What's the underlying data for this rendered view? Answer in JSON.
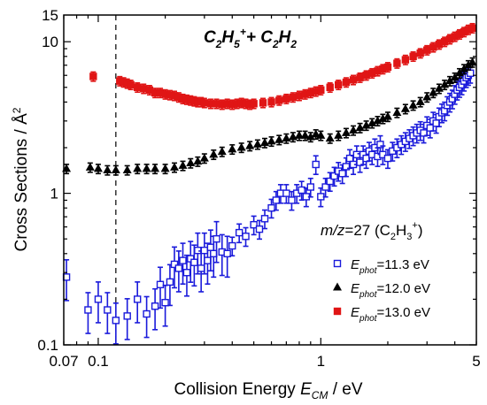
{
  "chart_data": {
    "type": "scatter",
    "title_parts": {
      "a": "C",
      "a_sub": "2",
      "b": "H",
      "b_sub": "5",
      "b_sup": "+",
      "plus": "+ C",
      "c_sub": "2",
      "d": "H",
      "d_sub": "2"
    },
    "xlabel": {
      "main": "Collision Energy ",
      "var": "E",
      "var_sub": "CM",
      "unit": " / eV"
    },
    "ylabel": "Cross Sections / Å",
    "ylabel_sup": "2",
    "xscale": "log",
    "yscale": "log",
    "xlim": [
      0.07,
      5
    ],
    "ylim": [
      0.1,
      15
    ],
    "x_ticks": [
      {
        "v": 0.07,
        "label": "0.07"
      },
      {
        "v": 0.1,
        "label": "0.1"
      },
      {
        "v": 1,
        "label": "1"
      },
      {
        "v": 5,
        "label": "5"
      }
    ],
    "y_ticks": [
      {
        "v": 0.1,
        "label": "0.1"
      },
      {
        "v": 1,
        "label": "1"
      },
      {
        "v": 10,
        "label": "10"
      },
      {
        "v": 15,
        "label": "15"
      }
    ],
    "dashed_line_x": 0.12,
    "legend_header": {
      "mz_italic": "m/z",
      "mz_rest": "=27 (C",
      "s1": "2",
      "mid": "H",
      "s2": "3",
      "sup": "+",
      "close": ")"
    },
    "legend_placement": "lower-right",
    "series": [
      {
        "name": "E_phot=11.3 eV",
        "label_var": "E",
        "label_sub": "phot",
        "label_rest": "=11.3 eV",
        "marker": "open-square",
        "color": "#1a1adb",
        "points": [
          [
            0.072,
            0.28
          ],
          [
            0.09,
            0.17
          ],
          [
            0.1,
            0.2
          ],
          [
            0.11,
            0.17
          ],
          [
            0.12,
            0.145
          ],
          [
            0.135,
            0.155
          ],
          [
            0.15,
            0.2
          ],
          [
            0.165,
            0.16
          ],
          [
            0.18,
            0.18
          ],
          [
            0.19,
            0.25
          ],
          [
            0.2,
            0.19
          ],
          [
            0.21,
            0.26
          ],
          [
            0.22,
            0.34
          ],
          [
            0.23,
            0.32
          ],
          [
            0.24,
            0.36
          ],
          [
            0.25,
            0.3
          ],
          [
            0.26,
            0.37
          ],
          [
            0.27,
            0.35
          ],
          [
            0.28,
            0.42
          ],
          [
            0.29,
            0.32
          ],
          [
            0.3,
            0.42
          ],
          [
            0.31,
            0.36
          ],
          [
            0.32,
            0.44
          ],
          [
            0.33,
            0.4
          ],
          [
            0.34,
            0.5
          ],
          [
            0.36,
            0.41
          ],
          [
            0.38,
            0.4
          ],
          [
            0.4,
            0.45
          ],
          [
            0.43,
            0.55
          ],
          [
            0.46,
            0.52
          ],
          [
            0.5,
            0.62
          ],
          [
            0.53,
            0.58
          ],
          [
            0.56,
            0.68
          ],
          [
            0.6,
            0.8
          ],
          [
            0.63,
            0.9
          ],
          [
            0.66,
            1.0
          ],
          [
            0.7,
            1.0
          ],
          [
            0.74,
            0.9
          ],
          [
            0.78,
            1.0
          ],
          [
            0.82,
            1.05
          ],
          [
            0.86,
            0.95
          ],
          [
            0.9,
            1.1
          ],
          [
            0.95,
            1.55
          ],
          [
            1.0,
            0.95
          ],
          [
            1.05,
            1.1
          ],
          [
            1.1,
            1.2
          ],
          [
            1.15,
            1.3
          ],
          [
            1.2,
            1.4
          ],
          [
            1.25,
            1.35
          ],
          [
            1.3,
            1.5
          ],
          [
            1.35,
            1.7
          ],
          [
            1.4,
            1.55
          ],
          [
            1.45,
            1.8
          ],
          [
            1.5,
            1.6
          ],
          [
            1.55,
            1.8
          ],
          [
            1.6,
            1.7
          ],
          [
            1.65,
            1.9
          ],
          [
            1.7,
            1.8
          ],
          [
            1.75,
            2.0
          ],
          [
            1.8,
            1.75
          ],
          [
            1.85,
            2.1
          ],
          [
            1.9,
            1.8
          ],
          [
            2.0,
            1.7
          ],
          [
            2.1,
            1.9
          ],
          [
            2.2,
            2.0
          ],
          [
            2.3,
            2.1
          ],
          [
            2.4,
            2.2
          ],
          [
            2.5,
            2.3
          ],
          [
            2.6,
            2.4
          ],
          [
            2.7,
            2.5
          ],
          [
            2.8,
            2.6
          ],
          [
            2.9,
            2.5
          ],
          [
            3.0,
            2.8
          ],
          [
            3.1,
            2.7
          ],
          [
            3.2,
            3.0
          ],
          [
            3.3,
            2.9
          ],
          [
            3.4,
            3.2
          ],
          [
            3.5,
            3.4
          ],
          [
            3.6,
            3.5
          ],
          [
            3.7,
            3.8
          ],
          [
            3.8,
            4.0
          ],
          [
            3.9,
            4.2
          ],
          [
            4.0,
            4.5
          ],
          [
            4.1,
            4.8
          ],
          [
            4.2,
            5.0
          ],
          [
            4.3,
            5.2
          ],
          [
            4.4,
            5.5
          ],
          [
            4.5,
            5.8
          ],
          [
            4.6,
            6.0
          ],
          [
            4.7,
            6.2
          ]
        ]
      },
      {
        "name": "E_phot=12.0 eV",
        "label_var": "E",
        "label_sub": "phot",
        "label_rest": "=12.0 eV",
        "marker": "filled-triangle",
        "color": "#000000",
        "points": [
          [
            0.072,
            1.45
          ],
          [
            0.092,
            1.48
          ],
          [
            0.1,
            1.45
          ],
          [
            0.11,
            1.42
          ],
          [
            0.12,
            1.42
          ],
          [
            0.135,
            1.42
          ],
          [
            0.15,
            1.45
          ],
          [
            0.165,
            1.45
          ],
          [
            0.18,
            1.45
          ],
          [
            0.2,
            1.45
          ],
          [
            0.22,
            1.48
          ],
          [
            0.24,
            1.52
          ],
          [
            0.26,
            1.58
          ],
          [
            0.28,
            1.62
          ],
          [
            0.3,
            1.7
          ],
          [
            0.33,
            1.8
          ],
          [
            0.36,
            1.88
          ],
          [
            0.4,
            1.95
          ],
          [
            0.44,
            2.0
          ],
          [
            0.48,
            2.05
          ],
          [
            0.52,
            2.1
          ],
          [
            0.56,
            2.15
          ],
          [
            0.6,
            2.2
          ],
          [
            0.65,
            2.25
          ],
          [
            0.7,
            2.3
          ],
          [
            0.75,
            2.35
          ],
          [
            0.8,
            2.4
          ],
          [
            0.85,
            2.4
          ],
          [
            0.9,
            2.35
          ],
          [
            0.95,
            2.45
          ],
          [
            1.0,
            2.4
          ],
          [
            1.1,
            2.3
          ],
          [
            1.2,
            2.4
          ],
          [
            1.3,
            2.5
          ],
          [
            1.4,
            2.6
          ],
          [
            1.5,
            2.7
          ],
          [
            1.6,
            2.8
          ],
          [
            1.7,
            2.9
          ],
          [
            1.8,
            3.0
          ],
          [
            1.9,
            3.1
          ],
          [
            2.0,
            3.2
          ],
          [
            2.2,
            3.4
          ],
          [
            2.4,
            3.6
          ],
          [
            2.6,
            3.8
          ],
          [
            2.8,
            4.0
          ],
          [
            3.0,
            4.3
          ],
          [
            3.2,
            4.6
          ],
          [
            3.4,
            4.9
          ],
          [
            3.6,
            5.2
          ],
          [
            3.8,
            5.5
          ],
          [
            4.0,
            5.8
          ],
          [
            4.2,
            6.2
          ],
          [
            4.4,
            6.6
          ],
          [
            4.6,
            7.0
          ],
          [
            4.8,
            7.3
          ]
        ]
      },
      {
        "name": "E_phot=13.0 eV",
        "label_var": "E",
        "label_sub": "phot",
        "label_rest": "=13.0 eV",
        "marker": "filled-square",
        "color": "#e01515",
        "points": [
          [
            0.095,
            5.9
          ],
          [
            0.125,
            5.5
          ],
          [
            0.13,
            5.4
          ],
          [
            0.135,
            5.3
          ],
          [
            0.14,
            5.2
          ],
          [
            0.15,
            5.0
          ],
          [
            0.16,
            4.9
          ],
          [
            0.17,
            4.8
          ],
          [
            0.18,
            4.6
          ],
          [
            0.19,
            4.6
          ],
          [
            0.2,
            4.5
          ],
          [
            0.21,
            4.45
          ],
          [
            0.22,
            4.4
          ],
          [
            0.23,
            4.3
          ],
          [
            0.24,
            4.2
          ],
          [
            0.25,
            4.15
          ],
          [
            0.26,
            4.1
          ],
          [
            0.27,
            4.05
          ],
          [
            0.28,
            4.0
          ],
          [
            0.29,
            4.0
          ],
          [
            0.3,
            3.95
          ],
          [
            0.32,
            3.9
          ],
          [
            0.34,
            3.9
          ],
          [
            0.36,
            3.85
          ],
          [
            0.38,
            3.9
          ],
          [
            0.4,
            3.85
          ],
          [
            0.42,
            3.9
          ],
          [
            0.44,
            3.95
          ],
          [
            0.46,
            3.9
          ],
          [
            0.48,
            3.85
          ],
          [
            0.5,
            3.9
          ],
          [
            0.55,
            3.95
          ],
          [
            0.6,
            4.0
          ],
          [
            0.65,
            4.1
          ],
          [
            0.7,
            4.2
          ],
          [
            0.75,
            4.3
          ],
          [
            0.8,
            4.4
          ],
          [
            0.85,
            4.5
          ],
          [
            0.9,
            4.6
          ],
          [
            0.95,
            4.7
          ],
          [
            1.0,
            4.8
          ],
          [
            1.1,
            5.0
          ],
          [
            1.2,
            5.2
          ],
          [
            1.3,
            5.4
          ],
          [
            1.4,
            5.6
          ],
          [
            1.5,
            5.8
          ],
          [
            1.6,
            6.0
          ],
          [
            1.7,
            6.2
          ],
          [
            1.8,
            6.4
          ],
          [
            1.9,
            6.6
          ],
          [
            2.0,
            6.8
          ],
          [
            2.2,
            7.2
          ],
          [
            2.4,
            7.6
          ],
          [
            2.6,
            8.0
          ],
          [
            2.8,
            8.4
          ],
          [
            3.0,
            8.8
          ],
          [
            3.2,
            9.2
          ],
          [
            3.4,
            9.6
          ],
          [
            3.6,
            10.0
          ],
          [
            3.8,
            10.4
          ],
          [
            4.0,
            10.8
          ],
          [
            4.2,
            11.2
          ],
          [
            4.4,
            11.6
          ],
          [
            4.6,
            12.0
          ],
          [
            4.8,
            12.3
          ]
        ]
      }
    ]
  }
}
